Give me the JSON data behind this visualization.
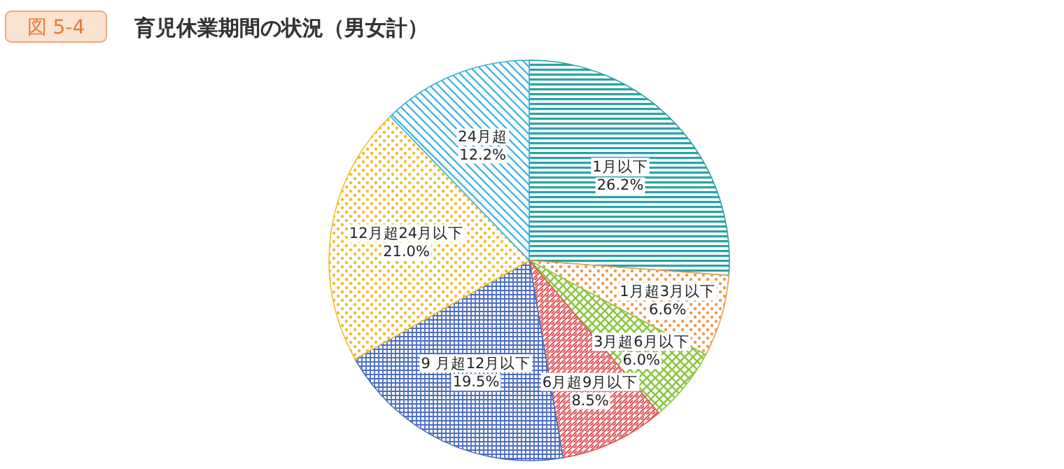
{
  "chart_data": {
    "type": "pie",
    "title": "育児休業期間の状況（男女計）",
    "annotations": [
      "図 5-4"
    ],
    "categories": [
      "1月以下",
      "1月超3月以下",
      "3月超6月以下",
      "6月超9月以下",
      "9 月超12月以下",
      "12月超24月以下",
      "24月超"
    ],
    "values": [
      26.2,
      6.6,
      6.0,
      8.5,
      19.5,
      21.0,
      12.2
    ],
    "colors": [
      "#2aa3a3",
      "#f09a4a",
      "#8cc63f",
      "#e0545a",
      "#4a6cc0",
      "#f2bc2e",
      "#35b0e0"
    ],
    "value_labels": [
      "26.2%",
      "6.6%",
      "6.0%",
      "8.5%",
      "19.5%",
      "21.0%",
      "12.2%"
    ]
  }
}
